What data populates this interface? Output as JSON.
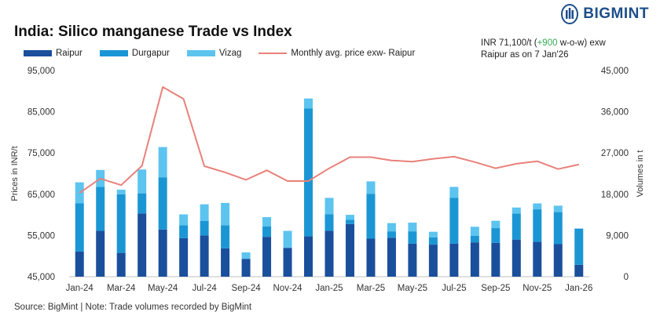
{
  "header": {
    "title": "India: Silico manganese Trade vs Index",
    "brand": "BIGMINT",
    "note_line1_a": "INR 71,100/t (",
    "note_line1_b": "+900",
    "note_line1_c": " w-o-w) exw",
    "note_line2": "Raipur as on 7 Jan'26"
  },
  "legend": {
    "raipur": "Raipur",
    "durgapur": "Durgapur",
    "vizag": "Vizag",
    "price": "Monthly avg. price exw- Raipur"
  },
  "source": "Source: BigMint | Note: Trade volumes recorded by BigMint",
  "colors": {
    "raipur": "#1a4f9c",
    "durgapur": "#1b96d4",
    "vizag": "#5cc4ef",
    "price": "#e8817a",
    "accent_green": "#34a853"
  },
  "chart_data": {
    "type": "bar",
    "stacked": true,
    "categories": [
      "Jan-24",
      "Feb-24",
      "Mar-24",
      "Apr-24",
      "May-24",
      "Jun-24",
      "Jul-24",
      "Aug-24",
      "Sep-24",
      "Oct-24",
      "Nov-24",
      "Dec-24",
      "Jan-25",
      "Feb-25",
      "Mar-25",
      "Apr-25",
      "May-25",
      "Jun-25",
      "Jul-25",
      "Aug-25",
      "Sep-25",
      "Oct-25",
      "Nov-25",
      "Dec-25",
      "Jan-26"
    ],
    "x_tick_labels": [
      "Jan-24",
      "Mar-24",
      "May-24",
      "Jul-24",
      "Sep-24",
      "Nov-24",
      "Jan-25",
      "Mar-25",
      "May-25",
      "Jul-25",
      "Sep-25",
      "Nov-25",
      "Jan-26"
    ],
    "series": [
      {
        "name": "Raipur",
        "axis": "right",
        "values": [
          5500,
          10000,
          5200,
          13800,
          10300,
          8400,
          9000,
          6200,
          3900,
          8700,
          6300,
          8800,
          10000,
          11500,
          8300,
          8500,
          7200,
          7000,
          7200,
          7500,
          7400,
          8100,
          7600,
          7100,
          2600
        ]
      },
      {
        "name": "Durgapur",
        "axis": "right",
        "values": [
          10500,
          9600,
          12800,
          4400,
          11400,
          2800,
          3200,
          5000,
          0,
          2300,
          0,
          27900,
          3600,
          900,
          9800,
          1400,
          2700,
          1600,
          10000,
          1400,
          3200,
          5700,
          7100,
          7000,
          7900
        ]
      },
      {
        "name": "Vizag",
        "axis": "right",
        "values": [
          4600,
          3700,
          1000,
          5200,
          6600,
          2400,
          3600,
          4900,
          1400,
          2000,
          3700,
          2200,
          3600,
          1100,
          2700,
          1800,
          1900,
          1200,
          2400,
          2000,
          1600,
          1300,
          1300,
          1400,
          0
        ]
      },
      {
        "name": "Monthly avg. price exw- Raipur",
        "type": "line",
        "axis": "left",
        "values": [
          65300,
          68800,
          67200,
          71900,
          91000,
          88100,
          71800,
          70300,
          68500,
          70800,
          68200,
          68200,
          71300,
          74000,
          74000,
          73200,
          72900,
          73600,
          74100,
          72800,
          71300,
          72400,
          73000,
          71100,
          72200
        ]
      }
    ],
    "ylabel": "Prices in INR/t",
    "ylim": [
      45000,
      95000
    ],
    "yticks": [
      "45,000",
      "55,000",
      "65,000",
      "75,000",
      "85,000",
      "95,000"
    ],
    "ylabel_right": "Volumes in t",
    "ylim_right": [
      0,
      45000
    ],
    "yticks_right": [
      "0",
      "9,000",
      "18,000",
      "27,000",
      "36,000",
      "45,000"
    ],
    "grid": false,
    "legend_position": "top-left"
  }
}
